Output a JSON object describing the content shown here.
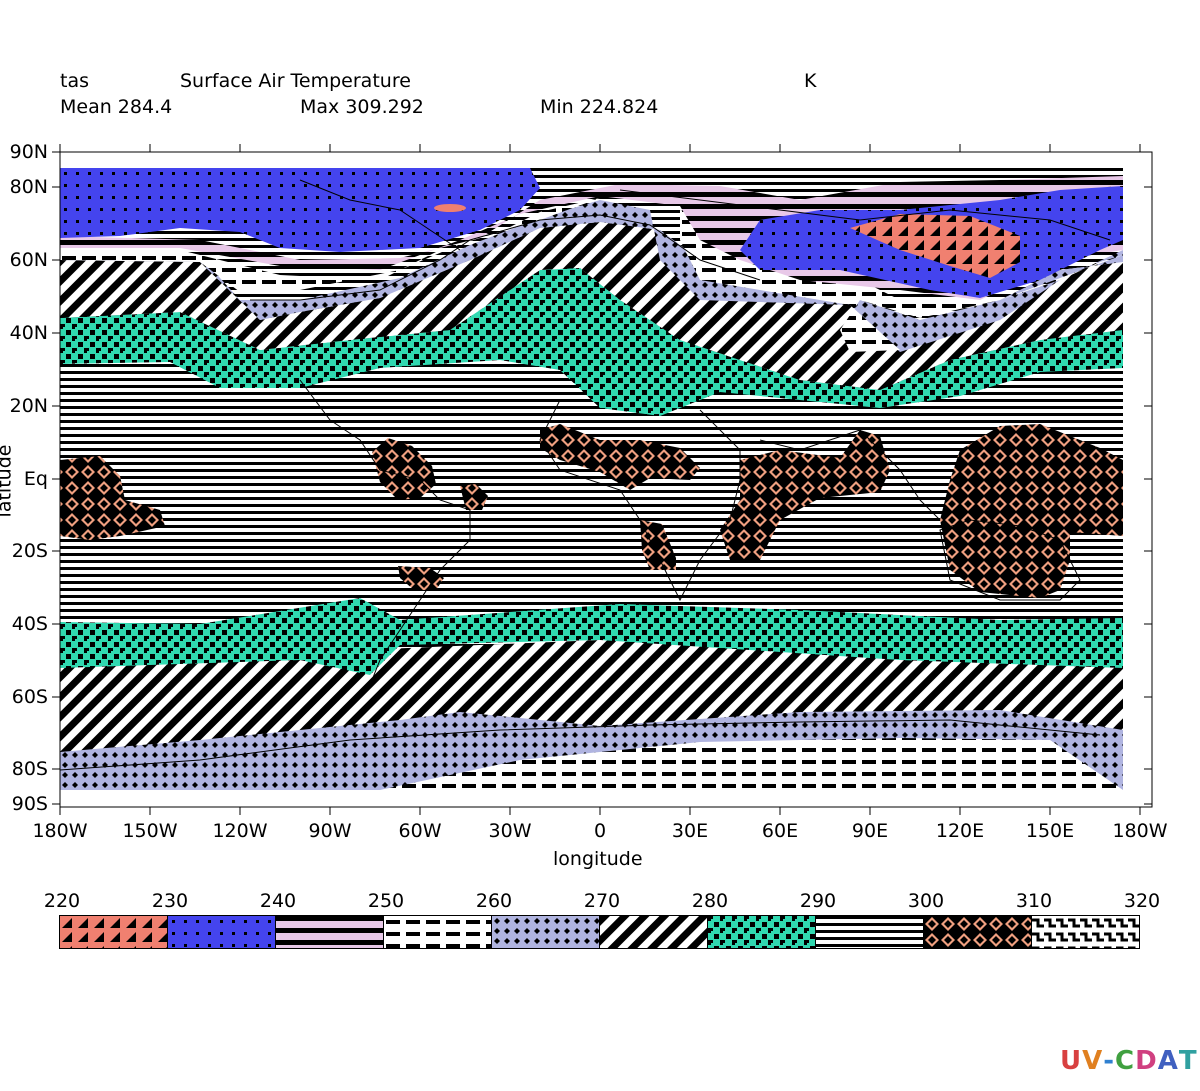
{
  "header": {
    "var_name": "tas",
    "long_name": "Surface Air Temperature",
    "units": "K",
    "mean_label": "Mean 284.4",
    "max_label": "Max 309.292",
    "min_label": "Min 224.824"
  },
  "axes": {
    "x_title": "longitude",
    "y_title": "latitude",
    "x_ticks": [
      "180W",
      "150W",
      "120W",
      "90W",
      "60W",
      "30W",
      "0",
      "30E",
      "60E",
      "90E",
      "120E",
      "150E",
      "180W"
    ],
    "x_tick_values": [
      -180,
      -150,
      -120,
      -90,
      -60,
      -30,
      0,
      30,
      60,
      90,
      120,
      150,
      180
    ],
    "y_ticks": [
      "90N",
      "80N",
      "60N",
      "40N",
      "20N",
      "Eq",
      "20S",
      "40S",
      "60S",
      "80S",
      "90S"
    ],
    "y_tick_values": [
      90,
      80,
      60,
      40,
      20,
      0,
      -20,
      -40,
      -60,
      -80,
      -90
    ]
  },
  "legend": {
    "boundaries": [
      "220",
      "230",
      "240",
      "250",
      "260",
      "270",
      "280",
      "290",
      "300",
      "310",
      "320"
    ],
    "bins": [
      {
        "range": [
          220,
          230
        ],
        "color": "#f08070",
        "pattern": "triangles"
      },
      {
        "range": [
          230,
          240
        ],
        "color": "#4444ee",
        "pattern": "dots"
      },
      {
        "range": [
          240,
          250
        ],
        "color": "#e8c8e8",
        "pattern": "thick-stripes"
      },
      {
        "range": [
          250,
          260
        ],
        "color": "#ffffff",
        "pattern": "dashes"
      },
      {
        "range": [
          260,
          270
        ],
        "color": "#b0b4e0",
        "pattern": "diamond-dots"
      },
      {
        "range": [
          270,
          280
        ],
        "color": "#ffffff",
        "pattern": "diagonal"
      },
      {
        "range": [
          280,
          290
        ],
        "color": "#30d8b0",
        "pattern": "checker"
      },
      {
        "range": [
          290,
          300
        ],
        "color": "#ffffff",
        "pattern": "thin-stripes"
      },
      {
        "range": [
          300,
          310
        ],
        "color": "#f0a080",
        "pattern": "diamonds"
      },
      {
        "range": [
          310,
          320
        ],
        "color": "#ffffff",
        "pattern": "waves"
      }
    ]
  },
  "logo": {
    "text": "UV-CDAT"
  }
}
